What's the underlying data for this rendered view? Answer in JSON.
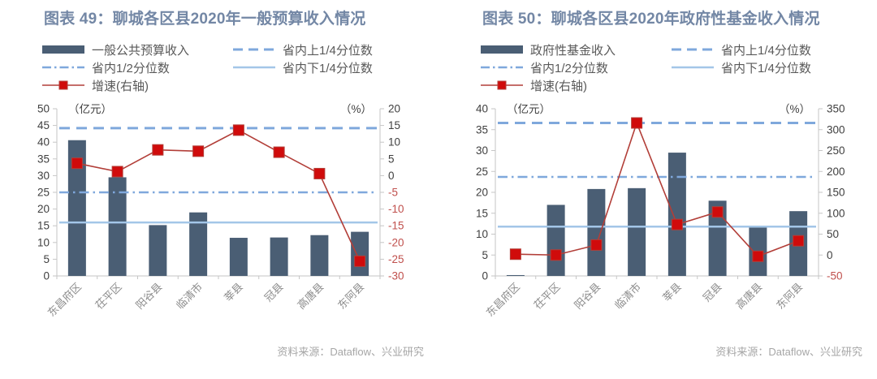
{
  "source": "资料来源：Dataflow、兴业研究",
  "colors": {
    "title": "#7387A5",
    "bar": "#4A5E74",
    "growth_line": "#B23E38",
    "growth_marker": "#D00B0B",
    "quartile_dashed": "#7FA8DC",
    "quartile_dashdot": "#7FA8DC",
    "quartile_solid": "#A3C6E8",
    "axis_text": "#404040",
    "axis_text_negative": "#C0504D",
    "axis_line": "#C6C6C6",
    "category_text": "#8C8C8C",
    "legend_text": "#595959",
    "source_text": "#A6A6A6"
  },
  "chart_data": [
    {
      "type": "bar+line",
      "title": "图表 49：聊城各区县2020年一般预算收入情况",
      "legend": {
        "bar": "一般公共预算收入",
        "upper": "省内上1/4分位数",
        "median": "省内1/2分位数",
        "lower": "省内下1/4分位数",
        "growth": "增速(右轴)"
      },
      "categories": [
        "东昌府区",
        "茌平区",
        "阳谷县",
        "临清市",
        "莘县",
        "冠县",
        "高唐县",
        "东阿县"
      ],
      "bar_series": {
        "name": "一般公共预算收入",
        "unit": "亿元",
        "values": [
          40.6,
          29.5,
          15.2,
          19,
          11.4,
          11.5,
          12.2,
          13.2
        ]
      },
      "line_series": {
        "name": "增速(右轴)",
        "unit": "%",
        "axis": "right",
        "values": [
          3.7,
          1.2,
          7.7,
          7.3,
          13.6,
          7,
          0.6,
          -25.6
        ]
      },
      "ref_lines": [
        {
          "name": "省内上1/4分位数",
          "style": "dashed",
          "value": 44.2
        },
        {
          "name": "省内1/2分位数",
          "style": "dashdot",
          "value": 25
        },
        {
          "name": "省内下1/4分位数",
          "style": "solid",
          "value": 16
        }
      ],
      "y_left": {
        "min": 0,
        "max": 50,
        "step": 5,
        "unit_label": "（亿元）"
      },
      "y_right": {
        "min": -30,
        "max": 20,
        "step": 5,
        "unit_label": "（%）"
      },
      "grid": false,
      "legend_position": "top"
    },
    {
      "type": "bar+line",
      "title": "图表 50：聊城各区县2020年政府性基金收入情况",
      "legend": {
        "bar": "政府性基金收入",
        "upper": "省内上1/4分位数",
        "median": "省内1/2分位数",
        "lower": "省内下1/4分位数",
        "growth": "增速(右轴)"
      },
      "categories": [
        "东昌府区",
        "茌平区",
        "阳谷县",
        "临清市",
        "莘县",
        "冠县",
        "高唐县",
        "东阿县"
      ],
      "bar_series": {
        "name": "政府性基金收入",
        "unit": "亿元",
        "values": [
          0.2,
          17,
          20.8,
          21,
          29.5,
          18,
          11.7,
          15.5
        ]
      },
      "line_series": {
        "name": "增速(右轴)",
        "unit": "%",
        "axis": "right",
        "values": [
          2,
          0,
          24,
          316,
          73,
          103,
          -3,
          34
        ]
      },
      "ref_lines": [
        {
          "name": "省内上1/4分位数",
          "style": "dashed",
          "value": 36.6
        },
        {
          "name": "省内1/2分位数",
          "style": "dashdot",
          "value": 23.7
        },
        {
          "name": "省内下1/4分位数",
          "style": "solid",
          "value": 11.8
        }
      ],
      "y_left": {
        "min": 0,
        "max": 40,
        "step": 5,
        "unit_label": "（亿元）"
      },
      "y_right": {
        "min": -50,
        "max": 350,
        "step": 50,
        "unit_label": "（%）"
      },
      "grid": false,
      "legend_position": "top"
    }
  ]
}
